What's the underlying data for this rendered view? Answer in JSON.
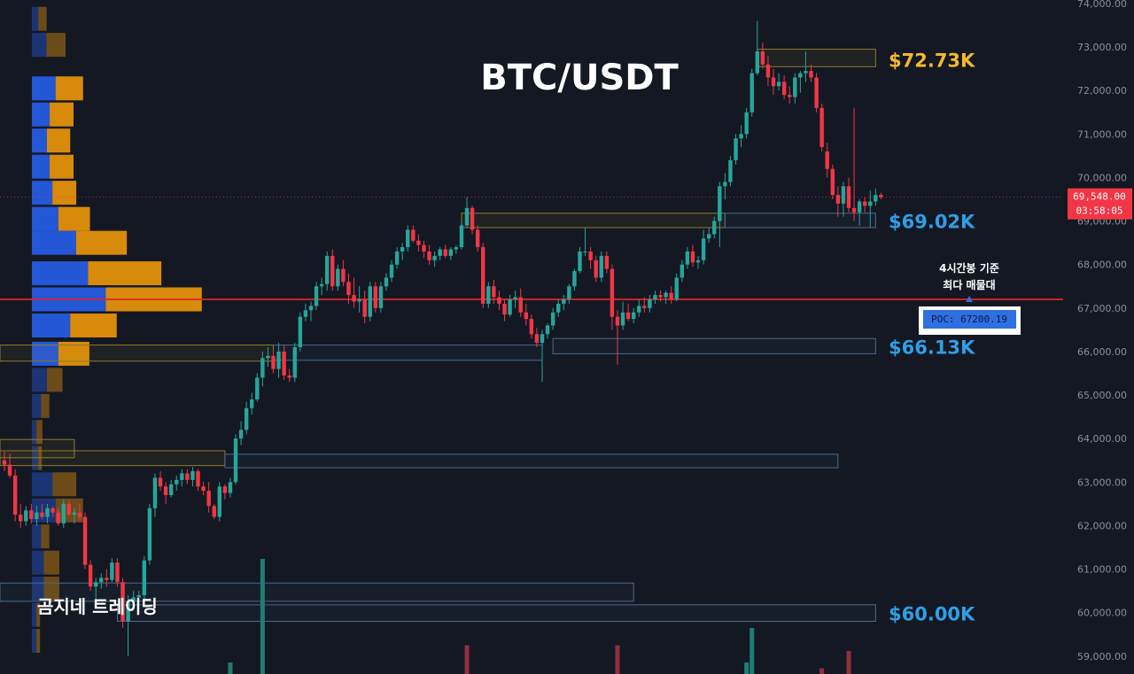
{
  "chart_data": {
    "type": "candlestick",
    "title": "BTC/USDT",
    "watermark": "곰지네 트레이딩",
    "y_axis": {
      "ylim": [
        58600,
        74000
      ],
      "ticks": [
        "74,000.00",
        "73,000.00",
        "72,000.00",
        "71,000.00",
        "70,000.00",
        "69,000.00",
        "68,000.00",
        "67,000.00",
        "66,000.00",
        "65,000.00",
        "64,000.00",
        "63,000.00",
        "62,000.00",
        "61,000.00",
        "60,000.00",
        "59,000.00"
      ],
      "tick_values": [
        74000,
        73000,
        72000,
        71000,
        70000,
        69000,
        68000,
        67000,
        66000,
        65000,
        64000,
        63000,
        62000,
        61000,
        60000,
        59000
      ]
    },
    "current_price": {
      "price_label": "69,548.00",
      "countdown": "03:58:05",
      "value": 69548,
      "color": "#f23645"
    },
    "poc": {
      "label": "POC: 67200.19",
      "value": 67200.19,
      "note_line1": "4시간봉 기준",
      "note_line2": "최다 매물대",
      "line_color": "#e02424"
    },
    "price_labels": [
      {
        "text": "$72.73K",
        "value": 72730,
        "color": "#f5b731"
      },
      {
        "text": "$69.02K",
        "value": 69020,
        "color": "#2f9ee6"
      },
      {
        "text": "$66.13K",
        "value": 66130,
        "color": "#2f9ee6"
      },
      {
        "text": "$60.00K",
        "value": 60000,
        "color": "#2f9ee6"
      }
    ],
    "zones": [
      {
        "kind": "supply",
        "from_index": 140,
        "to_index": 162,
        "low": 72550,
        "high": 72950
      },
      {
        "kind": "supply",
        "from_index": 85,
        "to_index": 134,
        "low": 68850,
        "high": 69180
      },
      {
        "kind": "demand",
        "from_index": 134,
        "to_index": 162,
        "low": 68850,
        "high": 69180
      },
      {
        "kind": "demand",
        "from_index": 102,
        "to_index": 162,
        "low": 65950,
        "high": 66300
      },
      {
        "kind": "demand",
        "from_index": 50,
        "to_index": 100,
        "low": 65800,
        "high": 66150
      },
      {
        "kind": "supply",
        "from_index": 0,
        "to_index": 50,
        "low": 65780,
        "high": 66150
      },
      {
        "kind": "supply",
        "from_index": 0,
        "to_index": 13,
        "low": 63560,
        "high": 63980
      },
      {
        "kind": "supply",
        "from_index": 0,
        "to_index": 41,
        "low": 63380,
        "high": 63720
      },
      {
        "kind": "demand",
        "from_index": 41,
        "to_index": 155,
        "low": 63330,
        "high": 63640
      },
      {
        "kind": "demand",
        "from_index": 0,
        "to_index": 117,
        "low": 60260,
        "high": 60680
      },
      {
        "kind": "demand",
        "from_index": 21,
        "to_index": 162,
        "low": 59800,
        "high": 60180
      }
    ],
    "volume_profile": [
      {
        "price": 73650,
        "buy": 14,
        "sell": 14,
        "in_value_area": false
      },
      {
        "price": 73050,
        "buy": 32,
        "sell": 32,
        "in_value_area": false
      },
      {
        "price": 72050,
        "buy": 52,
        "sell": 46,
        "in_value_area": true
      },
      {
        "price": 71450,
        "buy": 39,
        "sell": 40,
        "in_value_area": true
      },
      {
        "price": 70850,
        "buy": 33,
        "sell": 39,
        "in_value_area": true
      },
      {
        "price": 70250,
        "buy": 39,
        "sell": 40,
        "in_value_area": true
      },
      {
        "price": 69650,
        "buy": 45,
        "sell": 40,
        "in_value_area": true
      },
      {
        "price": 69050,
        "buy": 58,
        "sell": 53,
        "in_value_area": true
      },
      {
        "price": 68500,
        "buy": 97,
        "sell": 85,
        "in_value_area": true
      },
      {
        "price": 67800,
        "buy": 123,
        "sell": 123,
        "in_value_area": true
      },
      {
        "price": 67200,
        "buy": 162,
        "sell": 161,
        "in_value_area": true
      },
      {
        "price": 66600,
        "buy": 84,
        "sell": 78,
        "in_value_area": true
      },
      {
        "price": 65950,
        "buy": 58,
        "sell": 52,
        "in_value_area": true
      },
      {
        "price": 65350,
        "buy": 33,
        "sell": 26,
        "in_value_area": false
      },
      {
        "price": 64750,
        "buy": 20,
        "sell": 14,
        "in_value_area": false
      },
      {
        "price": 64150,
        "buy": 10,
        "sell": 10,
        "in_value_area": false
      },
      {
        "price": 63550,
        "buy": 14,
        "sell": 6,
        "in_value_area": false
      },
      {
        "price": 62950,
        "buy": 45,
        "sell": 40,
        "in_value_area": false
      },
      {
        "price": 62350,
        "buy": 52,
        "sell": 46,
        "in_value_area": false
      },
      {
        "price": 61750,
        "buy": 20,
        "sell": 14,
        "in_value_area": false
      },
      {
        "price": 61150,
        "buy": 26,
        "sell": 26,
        "in_value_area": false
      },
      {
        "price": 60550,
        "buy": 26,
        "sell": 26,
        "in_value_area": false
      },
      {
        "price": 59950,
        "buy": 10,
        "sell": 6,
        "in_value_area": false
      },
      {
        "price": 59350,
        "buy": 10,
        "sell": 6,
        "in_value_area": false
      }
    ],
    "volume": [
      {
        "index": 42,
        "value": 2,
        "dir": "up"
      },
      {
        "index": 48,
        "value": 20,
        "dir": "up"
      },
      {
        "index": 86,
        "value": 5,
        "dir": "down"
      },
      {
        "index": 114,
        "value": 5,
        "dir": "down"
      },
      {
        "index": 138,
        "value": 2,
        "dir": "up"
      },
      {
        "index": 139,
        "value": 8,
        "dir": "up"
      },
      {
        "index": 152,
        "value": 1,
        "dir": "down"
      },
      {
        "index": 157,
        "value": 4,
        "dir": "down"
      }
    ],
    "candles": [
      [
        63500,
        63700,
        63250,
        63400
      ],
      [
        63400,
        63650,
        63100,
        63150
      ],
      [
        63150,
        63300,
        62100,
        62250
      ],
      [
        62250,
        62500,
        61950,
        62100
      ],
      [
        62100,
        62450,
        62000,
        62350
      ],
      [
        62350,
        62500,
        62050,
        62150
      ],
      [
        62150,
        62450,
        62000,
        62300
      ],
      [
        62300,
        62500,
        62150,
        62200
      ],
      [
        62200,
        62500,
        62050,
        62400
      ],
      [
        62400,
        62450,
        62200,
        62300
      ],
      [
        62300,
        62400,
        62000,
        62050
      ],
      [
        62050,
        62600,
        61950,
        62500
      ],
      [
        62500,
        62600,
        62200,
        62250
      ],
      [
        62250,
        62400,
        62050,
        62300
      ],
      [
        62300,
        62500,
        62100,
        62200
      ],
      [
        62200,
        62300,
        61000,
        61100
      ],
      [
        61100,
        61200,
        60500,
        60600
      ],
      [
        60600,
        60800,
        60300,
        60700
      ],
      [
        60700,
        60900,
        60550,
        60800
      ],
      [
        60800,
        61000,
        60600,
        60750
      ],
      [
        60750,
        61250,
        60700,
        61150
      ],
      [
        61150,
        61250,
        60600,
        60700
      ],
      [
        60700,
        60800,
        59650,
        59800
      ],
      [
        59800,
        60400,
        59000,
        60250
      ],
      [
        60250,
        60500,
        60100,
        60350
      ],
      [
        60350,
        60500,
        60100,
        60400
      ],
      [
        60400,
        61300,
        60300,
        61200
      ],
      [
        61200,
        62500,
        61100,
        62400
      ],
      [
        62400,
        63200,
        62200,
        63100
      ],
      [
        63100,
        63250,
        62800,
        62900
      ],
      [
        62900,
        63000,
        62500,
        62700
      ],
      [
        62700,
        63050,
        62650,
        62950
      ],
      [
        62950,
        63150,
        62800,
        63050
      ],
      [
        63050,
        63300,
        62900,
        63200
      ],
      [
        63200,
        63300,
        62950,
        63050
      ],
      [
        63050,
        63350,
        62900,
        63250
      ],
      [
        63250,
        63300,
        62800,
        62900
      ],
      [
        62900,
        63000,
        62700,
        62800
      ],
      [
        62800,
        63000,
        62300,
        62450
      ],
      [
        62450,
        62500,
        62150,
        62200
      ],
      [
        62200,
        63000,
        62100,
        62900
      ],
      [
        62900,
        62950,
        62600,
        62750
      ],
      [
        62750,
        63100,
        62650,
        63000
      ],
      [
        63000,
        64100,
        62950,
        64000
      ],
      [
        64000,
        64400,
        63850,
        64200
      ],
      [
        64200,
        64850,
        64100,
        64700
      ],
      [
        64700,
        65050,
        64550,
        64900
      ],
      [
        64900,
        65500,
        64850,
        65400
      ],
      [
        65400,
        66000,
        65200,
        65850
      ],
      [
        65850,
        66100,
        65650,
        65900
      ],
      [
        65900,
        66050,
        65500,
        65600
      ],
      [
        65600,
        66200,
        65400,
        66000
      ],
      [
        66000,
        66150,
        65350,
        65450
      ],
      [
        65450,
        65600,
        65300,
        65400
      ],
      [
        65400,
        66200,
        65300,
        66100
      ],
      [
        66100,
        66900,
        66000,
        66800
      ],
      [
        66800,
        67100,
        66700,
        66950
      ],
      [
        66950,
        67150,
        66700,
        67050
      ],
      [
        67050,
        67600,
        66950,
        67500
      ],
      [
        67500,
        67700,
        67300,
        67550
      ],
      [
        67550,
        68300,
        67400,
        68200
      ],
      [
        68200,
        68350,
        67400,
        67500
      ],
      [
        67500,
        68000,
        67400,
        67900
      ],
      [
        67900,
        68100,
        67500,
        67600
      ],
      [
        67600,
        67800,
        67100,
        67300
      ],
      [
        67300,
        67700,
        67000,
        67150
      ],
      [
        67150,
        67500,
        66900,
        67200
      ],
      [
        67200,
        67400,
        66650,
        66800
      ],
      [
        66800,
        67600,
        66700,
        67500
      ],
      [
        67500,
        67600,
        66900,
        67000
      ],
      [
        67000,
        67600,
        66900,
        67500
      ],
      [
        67500,
        67800,
        67400,
        67700
      ],
      [
        67700,
        68100,
        67600,
        68000
      ],
      [
        68000,
        68400,
        67900,
        68300
      ],
      [
        68300,
        68500,
        68100,
        68400
      ],
      [
        68400,
        68900,
        68300,
        68800
      ],
      [
        68800,
        68900,
        68500,
        68550
      ],
      [
        68550,
        68700,
        68300,
        68450
      ],
      [
        68450,
        68550,
        68150,
        68300
      ],
      [
        68300,
        68450,
        68000,
        68100
      ],
      [
        68100,
        68300,
        67950,
        68200
      ],
      [
        68200,
        68400,
        68100,
        68350
      ],
      [
        68350,
        68450,
        68150,
        68200
      ],
      [
        68200,
        68400,
        68100,
        68350
      ],
      [
        68350,
        68450,
        68250,
        68400
      ],
      [
        68400,
        69000,
        68350,
        68900
      ],
      [
        68900,
        69550,
        68850,
        69300
      ],
      [
        69300,
        69350,
        68700,
        68800
      ],
      [
        68800,
        68900,
        68300,
        68400
      ],
      [
        68400,
        68500,
        67000,
        67100
      ],
      [
        67100,
        67600,
        67000,
        67500
      ],
      [
        67500,
        67650,
        67100,
        67250
      ],
      [
        67250,
        67400,
        66950,
        67100
      ],
      [
        67100,
        67200,
        66700,
        66850
      ],
      [
        66850,
        67300,
        66800,
        67200
      ],
      [
        67200,
        67400,
        67000,
        67250
      ],
      [
        67250,
        67450,
        66800,
        66900
      ],
      [
        66900,
        67100,
        66600,
        66750
      ],
      [
        66750,
        66850,
        66300,
        66400
      ],
      [
        66400,
        66550,
        66100,
        66200
      ],
      [
        66200,
        66500,
        65300,
        66400
      ],
      [
        66400,
        66650,
        66300,
        66600
      ],
      [
        66600,
        67000,
        66500,
        66900
      ],
      [
        66900,
        67200,
        66800,
        67100
      ],
      [
        67100,
        67300,
        66950,
        67200
      ],
      [
        67200,
        67550,
        67100,
        67500
      ],
      [
        67500,
        67900,
        67400,
        67850
      ],
      [
        67850,
        68400,
        67800,
        68300
      ],
      [
        68300,
        68850,
        68200,
        68300
      ],
      [
        68300,
        68400,
        67900,
        68100
      ],
      [
        68100,
        68200,
        67600,
        67700
      ],
      [
        67700,
        68300,
        67600,
        68200
      ],
      [
        68200,
        68300,
        67800,
        67900
      ],
      [
        67900,
        68000,
        66500,
        66800
      ],
      [
        66800,
        66950,
        65700,
        66600
      ],
      [
        66600,
        67150,
        66500,
        66900
      ],
      [
        66900,
        67100,
        66700,
        66750
      ],
      [
        66750,
        67000,
        66650,
        66900
      ],
      [
        66900,
        67200,
        66800,
        67050
      ],
      [
        67050,
        67250,
        66900,
        67000
      ],
      [
        67000,
        67300,
        66900,
        67200
      ],
      [
        67200,
        67400,
        67100,
        67300
      ],
      [
        67300,
        67400,
        67150,
        67250
      ],
      [
        67250,
        67400,
        67100,
        67350
      ],
      [
        67350,
        67500,
        67100,
        67200
      ],
      [
        67200,
        67800,
        67150,
        67700
      ],
      [
        67700,
        68100,
        67600,
        68000
      ],
      [
        68000,
        68400,
        67900,
        68300
      ],
      [
        68300,
        68450,
        67950,
        68050
      ],
      [
        68050,
        68200,
        67900,
        68100
      ],
      [
        68100,
        68800,
        68000,
        68600
      ],
      [
        68600,
        68850,
        68500,
        68700
      ],
      [
        68700,
        69100,
        68600,
        69000
      ],
      [
        69000,
        69900,
        68400,
        69800
      ],
      [
        69800,
        70100,
        69500,
        69900
      ],
      [
        69900,
        70500,
        69800,
        70400
      ],
      [
        70400,
        71000,
        70300,
        70900
      ],
      [
        70900,
        71200,
        70700,
        71000
      ],
      [
        71000,
        71600,
        70900,
        71500
      ],
      [
        71500,
        72500,
        71400,
        72400
      ],
      [
        72400,
        73600,
        72350,
        72900
      ],
      [
        72900,
        73100,
        72500,
        72600
      ],
      [
        72600,
        72800,
        72100,
        72300
      ],
      [
        72300,
        72500,
        71900,
        72100
      ],
      [
        72100,
        72400,
        72000,
        72200
      ],
      [
        72200,
        72350,
        71800,
        71900
      ],
      [
        71900,
        72100,
        71700,
        71850
      ],
      [
        71850,
        72400,
        71700,
        72300
      ],
      [
        72300,
        72450,
        71950,
        72400
      ],
      [
        72400,
        72900,
        72200,
        72450
      ],
      [
        72450,
        72600,
        72200,
        72300
      ],
      [
        72300,
        72400,
        71500,
        71600
      ],
      [
        71600,
        71700,
        70600,
        70700
      ],
      [
        70600,
        70800,
        70000,
        70200
      ],
      [
        70200,
        70300,
        69500,
        69600
      ],
      [
        69600,
        69800,
        69100,
        69400
      ],
      [
        69400,
        69900,
        69100,
        69800
      ],
      [
        69800,
        70000,
        69200,
        69300
      ],
      [
        69300,
        71600,
        69000,
        69200
      ],
      [
        69200,
        69500,
        68900,
        69450
      ],
      [
        69450,
        69550,
        69200,
        69350
      ],
      [
        69350,
        69700,
        68850,
        69450
      ],
      [
        69450,
        69750,
        69350,
        69600
      ],
      [
        69600,
        69650,
        69500,
        69548
      ]
    ]
  }
}
